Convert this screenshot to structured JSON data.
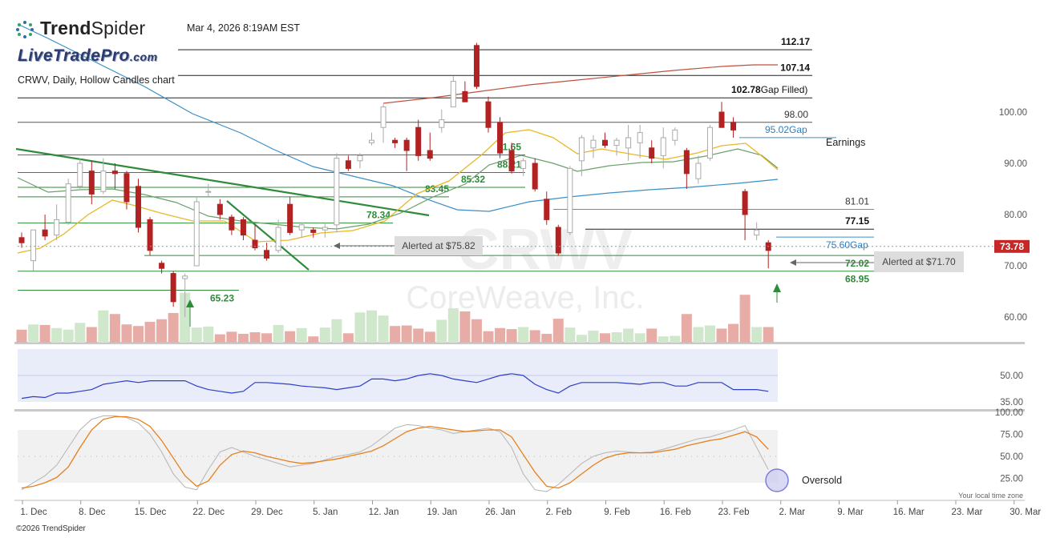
{
  "header": {
    "brand_prefix": "Trend",
    "brand_suffix": "Spider",
    "timestamp": "Mar 4, 2026 8:19AM EST",
    "watermark_site": "LiveTradePro",
    "watermark_domain": ".com",
    "chart_subtitle": "CRWV, Daily, Hollow Candles chart",
    "symbol_watermark": "CRWV",
    "company_watermark": "CoreWeave, Inc."
  },
  "footer": {
    "copyright": "©2026 TrendSpider",
    "timezone_note": "Your local time zone"
  },
  "colors": {
    "up": "#b9b9b9",
    "down": "#b22222",
    "trend": "#2e8b3a",
    "sma_blue": "#3a8fc8",
    "ema_yellow": "#e8b825",
    "sma_green": "#6aa06a",
    "sma_red": "#c0503c",
    "rsi": "#2d3ec9",
    "stoch_k": "#e87f1a",
    "stoch_d": "#b9b9b9"
  },
  "chart_data": [
    {
      "type": "candlestick",
      "title": "CRWV, Daily, Hollow Candles chart",
      "ylim": [
        55,
        116
      ],
      "price_ticks": [
        100.0,
        90.0,
        80.0,
        70.0,
        60.0
      ],
      "last_price": "73.78",
      "x_ticks": [
        "1. Dec",
        "8. Dec",
        "15. Dec",
        "22. Dec",
        "29. Dec",
        "5. Jan",
        "12. Jan",
        "19. Jan",
        "26. Jan",
        "2. Feb",
        "9. Feb",
        "16. Feb",
        "23. Feb",
        "2. Mar",
        "9. Mar",
        "16. Mar",
        "23. Mar",
        "30. Mar"
      ],
      "candles": [
        {
          "o": 75.5,
          "h": 76.5,
          "l": 73.5,
          "c": 74.5
        },
        {
          "o": 71.0,
          "h": 77.0,
          "l": 69.0,
          "c": 77.0
        },
        {
          "o": 77.0,
          "h": 80.0,
          "l": 75.0,
          "c": 75.8
        },
        {
          "o": 76.0,
          "h": 82.0,
          "l": 75.0,
          "c": 79.0
        },
        {
          "o": 78.5,
          "h": 87.0,
          "l": 78.0,
          "c": 86.0
        },
        {
          "o": 85.5,
          "h": 91.0,
          "l": 85.0,
          "c": 90.0
        },
        {
          "o": 88.5,
          "h": 90.5,
          "l": 82.0,
          "c": 84.0
        },
        {
          "o": 84.5,
          "h": 91.0,
          "l": 84.0,
          "c": 88.5
        },
        {
          "o": 88.5,
          "h": 90.0,
          "l": 85.0,
          "c": 88.0
        },
        {
          "o": 88.0,
          "h": 88.5,
          "l": 81.0,
          "c": 82.5
        },
        {
          "o": 85.5,
          "h": 87.0,
          "l": 76.5,
          "c": 77.5
        },
        {
          "o": 79.0,
          "h": 79.5,
          "l": 72.0,
          "c": 73.0
        },
        {
          "o": 70.5,
          "h": 71.0,
          "l": 68.5,
          "c": 69.5
        },
        {
          "o": 68.5,
          "h": 69.0,
          "l": 62.0,
          "c": 63.0
        },
        {
          "o": 67.5,
          "h": 68.5,
          "l": 60.0,
          "c": 68.0
        },
        {
          "o": 70.0,
          "h": 83.5,
          "l": 70.0,
          "c": 82.5
        },
        {
          "o": 84.5,
          "h": 86.0,
          "l": 83.5,
          "c": 84.5
        },
        {
          "o": 82.0,
          "h": 83.0,
          "l": 79.0,
          "c": 80.0
        },
        {
          "o": 79.5,
          "h": 80.0,
          "l": 76.0,
          "c": 77.0
        },
        {
          "o": 79.0,
          "h": 79.5,
          "l": 75.0,
          "c": 76.0
        },
        {
          "o": 75.0,
          "h": 78.0,
          "l": 73.0,
          "c": 73.5
        },
        {
          "o": 73.0,
          "h": 74.5,
          "l": 71.0,
          "c": 71.5
        },
        {
          "o": 73.0,
          "h": 79.0,
          "l": 72.5,
          "c": 77.5
        },
        {
          "o": 82.0,
          "h": 83.5,
          "l": 76.0,
          "c": 76.5
        },
        {
          "o": 77.0,
          "h": 78.5,
          "l": 75.5,
          "c": 78.0
        },
        {
          "o": 77.0,
          "h": 77.5,
          "l": 75.5,
          "c": 76.5
        },
        {
          "o": 77.0,
          "h": 78.5,
          "l": 75.5,
          "c": 77.5
        },
        {
          "o": 78.0,
          "h": 92.0,
          "l": 76.5,
          "c": 91.0
        },
        {
          "o": 90.5,
          "h": 91.5,
          "l": 88.5,
          "c": 89.0
        },
        {
          "o": 90.5,
          "h": 92.0,
          "l": 89.0,
          "c": 91.5
        },
        {
          "o": 94.0,
          "h": 96.0,
          "l": 93.5,
          "c": 94.5
        },
        {
          "o": 97.0,
          "h": 101.5,
          "l": 94.0,
          "c": 101.0
        },
        {
          "o": 94.5,
          "h": 95.0,
          "l": 93.0,
          "c": 94.0
        },
        {
          "o": 94.5,
          "h": 95.0,
          "l": 88.5,
          "c": 92.5
        },
        {
          "o": 97.0,
          "h": 98.5,
          "l": 90.5,
          "c": 91.5
        },
        {
          "o": 92.5,
          "h": 96.0,
          "l": 90.5,
          "c": 91.0
        },
        {
          "o": 97.0,
          "h": 100.5,
          "l": 96.0,
          "c": 98.5
        },
        {
          "o": 101.0,
          "h": 107.0,
          "l": 101.0,
          "c": 106.0
        },
        {
          "o": 104.0,
          "h": 106.0,
          "l": 102.0,
          "c": 102.0
        },
        {
          "o": 113.0,
          "h": 113.5,
          "l": 104.5,
          "c": 105.0
        },
        {
          "o": 102.0,
          "h": 103.0,
          "l": 96.0,
          "c": 97.0
        },
        {
          "o": 98.0,
          "h": 99.0,
          "l": 91.0,
          "c": 92.0
        },
        {
          "o": 92.5,
          "h": 94.0,
          "l": 88.0,
          "c": 88.5
        },
        {
          "o": 89.0,
          "h": 91.0,
          "l": 87.5,
          "c": 90.5
        },
        {
          "o": 90.0,
          "h": 91.0,
          "l": 84.5,
          "c": 85.0
        },
        {
          "o": 83.0,
          "h": 84.5,
          "l": 78.0,
          "c": 79.0
        },
        {
          "o": 77.5,
          "h": 78.0,
          "l": 72.0,
          "c": 72.5
        },
        {
          "o": 76.5,
          "h": 89.5,
          "l": 76.0,
          "c": 89.0
        },
        {
          "o": 90.5,
          "h": 95.5,
          "l": 87.5,
          "c": 95.0
        },
        {
          "o": 93.0,
          "h": 95.5,
          "l": 91.0,
          "c": 94.5
        },
        {
          "o": 94.5,
          "h": 96.0,
          "l": 93.0,
          "c": 93.5
        },
        {
          "o": 93.5,
          "h": 95.0,
          "l": 91.5,
          "c": 94.5
        },
        {
          "o": 93.0,
          "h": 97.5,
          "l": 90.5,
          "c": 95.0
        },
        {
          "o": 94.0,
          "h": 97.5,
          "l": 91.0,
          "c": 96.0
        },
        {
          "o": 93.0,
          "h": 94.5,
          "l": 90.0,
          "c": 91.0
        },
        {
          "o": 91.5,
          "h": 97.0,
          "l": 89.0,
          "c": 95.0
        },
        {
          "o": 94.5,
          "h": 97.0,
          "l": 93.5,
          "c": 96.5
        },
        {
          "o": 92.5,
          "h": 93.0,
          "l": 85.0,
          "c": 88.0
        },
        {
          "o": 87.0,
          "h": 91.5,
          "l": 86.0,
          "c": 90.0
        },
        {
          "o": 91.0,
          "h": 97.5,
          "l": 90.5,
          "c": 97.0
        },
        {
          "o": 100.0,
          "h": 102.0,
          "l": 97.0,
          "c": 97.0
        },
        {
          "o": 98.0,
          "h": 99.0,
          "l": 95.0,
          "c": 96.5
        },
        {
          "o": 84.5,
          "h": 85.0,
          "l": 75.0,
          "c": 80.0
        },
        {
          "o": 76.0,
          "h": 78.5,
          "l": 75.0,
          "c": 77.0
        },
        {
          "o": 74.5,
          "h": 75.0,
          "l": 69.5,
          "c": 73.0
        }
      ],
      "volume": [
        0.25,
        0.35,
        0.34,
        0.28,
        0.25,
        0.38,
        0.3,
        0.62,
        0.55,
        0.35,
        0.32,
        0.4,
        0.45,
        0.57,
        0.96,
        0.29,
        0.31,
        0.16,
        0.21,
        0.17,
        0.2,
        0.18,
        0.34,
        0.22,
        0.28,
        0.12,
        0.29,
        0.45,
        0.18,
        0.58,
        0.62,
        0.52,
        0.32,
        0.33,
        0.27,
        0.21,
        0.44,
        0.66,
        0.6,
        0.45,
        0.22,
        0.28,
        0.26,
        0.3,
        0.24,
        0.17,
        0.46,
        0.29,
        0.15,
        0.23,
        0.18,
        0.2,
        0.27,
        0.18,
        0.27,
        0.12,
        0.13,
        0.55,
        0.3,
        0.33,
        0.27,
        0.36,
        0.92,
        0.3,
        0.3
      ],
      "levels": [
        {
          "label": "112.17",
          "value": 112.17
        },
        {
          "label": "107.14",
          "value": 107.14
        },
        {
          "label": "102.78",
          "value": 102.78,
          "note": "Gap Filled)"
        },
        {
          "label": "98.00",
          "value": 98.0
        },
        {
          "label": "95.02",
          "value": 95.02,
          "note": "Gap"
        },
        {
          "label": "91.65",
          "value": 91.65
        },
        {
          "label": "88.21",
          "value": 88.21
        },
        {
          "label": "85.32",
          "value": 85.32
        },
        {
          "label": "83.45",
          "value": 83.45
        },
        {
          "label": "81.01",
          "value": 81.01
        },
        {
          "label": "78.34",
          "value": 78.34
        },
        {
          "label": "77.15",
          "value": 77.15
        },
        {
          "label": "75.60",
          "value": 75.6,
          "note": "Gap"
        },
        {
          "label": "72.02",
          "value": 72.02
        },
        {
          "label": "68.95",
          "value": 68.95
        },
        {
          "label": "65.23",
          "value": 65.23
        }
      ],
      "annotations": [
        "Alerted at $75.82",
        "Alerted at $71.70",
        "Earnings",
        "Oversold"
      ]
    },
    {
      "type": "line",
      "title": "",
      "ylim": [
        35,
        65
      ],
      "y_ticks": [
        50.0,
        35.0
      ],
      "series": [
        {
          "values": [
            37,
            38,
            37.5,
            40,
            40,
            41,
            42,
            45,
            46,
            47,
            46,
            47,
            47,
            47,
            47,
            44,
            42,
            41,
            40,
            41,
            46,
            46,
            45.5,
            45,
            44,
            43.5,
            43,
            42,
            43,
            44,
            48,
            48,
            47,
            48,
            50,
            51,
            50,
            48,
            47,
            46,
            48,
            50,
            51,
            50,
            45,
            42,
            40,
            44,
            46,
            46,
            46,
            46,
            45.5,
            45,
            46,
            46,
            44,
            44,
            46,
            46,
            46,
            42,
            42,
            42,
            41
          ]
        }
      ]
    },
    {
      "type": "line",
      "title": "",
      "ylim": [
        0,
        100
      ],
      "y_ticks": [
        100.0,
        75.0,
        50.0,
        25.0
      ],
      "series": [
        {
          "values": [
            12,
            20,
            28,
            40,
            60,
            80,
            92,
            96,
            96,
            94,
            88,
            75,
            55,
            30,
            15,
            12,
            35,
            55,
            60,
            55,
            50,
            46,
            42,
            38,
            40,
            42,
            46,
            50,
            52,
            55,
            62,
            72,
            82,
            86,
            85,
            82,
            80,
            76,
            78,
            80,
            82,
            78,
            60,
            30,
            12,
            10,
            18,
            30,
            42,
            50,
            54,
            56,
            55,
            54,
            55,
            58,
            62,
            66,
            70,
            72,
            76,
            80,
            85,
            60,
            35
          ]
        },
        {
          "values": [
            14,
            16,
            20,
            26,
            38,
            60,
            80,
            92,
            95,
            95,
            92,
            84,
            68,
            48,
            28,
            16,
            22,
            40,
            52,
            56,
            54,
            50,
            47,
            44,
            42,
            43,
            45,
            47,
            50,
            53,
            56,
            62,
            70,
            78,
            82,
            84,
            82,
            80,
            78,
            79,
            80,
            80,
            72,
            52,
            32,
            16,
            14,
            20,
            30,
            40,
            48,
            52,
            54,
            54,
            54,
            56,
            58,
            62,
            65,
            68,
            70,
            74,
            78,
            72,
            58
          ]
        }
      ]
    }
  ]
}
